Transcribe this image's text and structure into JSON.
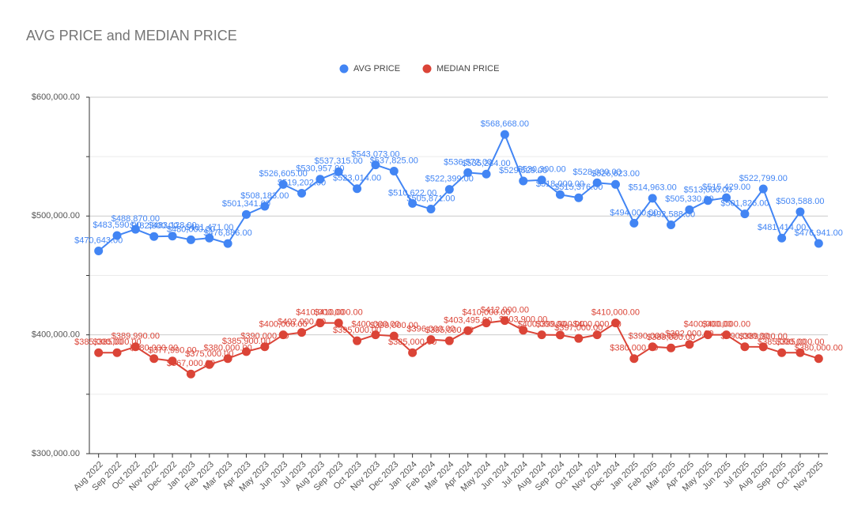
{
  "chart_data": {
    "type": "line",
    "title": "AVG PRICE and MEDIAN PRICE",
    "categories": [
      "Aug 2022",
      "Sep 2022",
      "Oct 2022",
      "Nov 2022",
      "Dec 2022",
      "Jan 2023",
      "Feb 2023",
      "Mar 2023",
      "Apr 2023",
      "May 2023",
      "Jun 2023",
      "Jul 2023",
      "Aug 2023",
      "Sep 2023",
      "Oct 2023",
      "Nov 2023",
      "Dec 2023",
      "Jan 2024",
      "Feb 2024",
      "Mar 2024",
      "Apr 2024",
      "May 2024",
      "Jun 2024",
      "Jul 2024",
      "Aug 2024",
      "Sep 2024",
      "Oct 2024",
      "Nov 2024",
      "Dec 2024",
      "Jan 2025",
      "Feb 2025",
      "Mar 2025",
      "Apr 2025",
      "May 2025",
      "Jun 2025",
      "Jul 2025",
      "Aug 2025",
      "Sep 2025",
      "Oct 2025",
      "Nov 2025"
    ],
    "series": [
      {
        "name": "AVG PRICE",
        "color": "#4285f4",
        "values": [
          470643,
          483590,
          488870,
          482800,
          483128,
          480000,
          481471,
          476886,
          501341,
          508183,
          526605,
          519202,
          530957,
          537315,
          523014,
          543073,
          537825,
          510622,
          505871,
          522399,
          536572,
          535284,
          568668,
          529529,
          530300,
          518000,
          515376,
          528000,
          526623,
          494000,
          514963,
          492588,
          505330,
          513000,
          515429,
          501826,
          522799,
          481414,
          503588,
          476941
        ],
        "value_labels": [
          "$470,643.00",
          "$483,590.00",
          "$488,870.00",
          "$482,800.00",
          "$483,128.00",
          "$480,000.00",
          "$481,471.00",
          "$476,886.00",
          "$501,341.00",
          "$508,183.00",
          "$526,605.00",
          "$519,202.00",
          "$530,957.00",
          "$537,315.00",
          "$523,014.00",
          "$543,073.00",
          "$537,825.00",
          "$510,622.00",
          "$505,871.00",
          "$522,399.00",
          "$536,572.00",
          "$535,284.00",
          "$568,668.00",
          "$529,529.00",
          "$530,300.00",
          "$518,000.00",
          "$515,376.00",
          "$528,000.00",
          "$526,623.00",
          "$494,000.00",
          "$514,963.00",
          "$492,588.00",
          "$505,330.00",
          "$513,000.00",
          "$515,429.00",
          "$501,826.00",
          "$522,799.00",
          "$481,414.00",
          "$503,588.00",
          "$476,941.00"
        ]
      },
      {
        "name": "MEDIAN PRICE",
        "color": "#db4437",
        "values": [
          385000,
          385000,
          389990,
          380000,
          377990,
          367000,
          375000,
          380000,
          385900,
          390000,
          400000,
          402000,
          410000,
          410000,
          395000,
          400000,
          399000,
          385000,
          396000,
          395000,
          403495,
          410000,
          412000,
          403900,
          400000,
          399900,
          397000,
          400000,
          410000,
          380000,
          390000,
          389000,
          392000,
          400000,
          400000,
          390000,
          389900,
          385000,
          385000,
          380000
        ],
        "value_labels": [
          "$385,000.00",
          "$385,000.00",
          "$389,990.00",
          "$380,000.00",
          "$377,990.00",
          "$367,000.00",
          "$375,000.00",
          "$380,000.00",
          "$385,900.00",
          "$390,000.00",
          "$400,000.00",
          "$402,000.00",
          "$410,000.00",
          "$410,000.00",
          "$395,000.00",
          "$400,000.00",
          "$399,000.00",
          "$385,000.00",
          "$396,000.00",
          "$395,000.00",
          "$403,495.00",
          "$410,000.00",
          "$412,000.00",
          "$403,900.00",
          "$400,000.00",
          "$399,900.00",
          "$397,000.00",
          "$400,000.00",
          "$410,000.00",
          "$380,000.00",
          "$390,000.00",
          "$389,000.00",
          "$392,000.00",
          "$400,000.00",
          "$400,000.00",
          "$390,000.00",
          "$389,900.00",
          "$385,000.00",
          "$385,000.00",
          "$380,000.00"
        ]
      }
    ],
    "ylim": [
      300000,
      600000
    ],
    "yticks": [
      {
        "value": 300000,
        "label": "$300,000.00"
      },
      {
        "value": 400000,
        "label": "$400,000.00"
      },
      {
        "value": 500000,
        "label": "$500,000.00"
      },
      {
        "value": 600000,
        "label": "$600,000.00"
      }
    ],
    "yminor": [
      350000,
      450000,
      550000
    ],
    "grid": true,
    "legend": "top"
  }
}
